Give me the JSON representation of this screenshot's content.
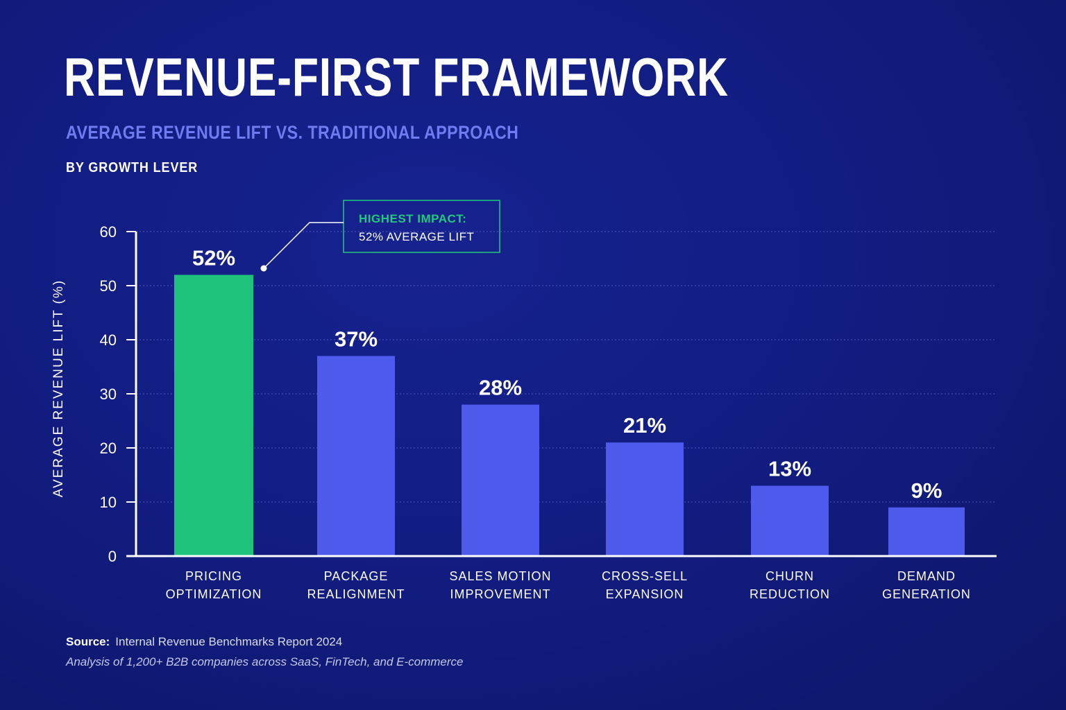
{
  "header": {
    "title": "REVENUE-FIRST FRAMEWORK",
    "subtitle": "AVERAGE REVENUE LIFT VS. TRADITIONAL APPROACH",
    "grouping": "BY GROWTH LEVER"
  },
  "chart_data": {
    "type": "bar",
    "ylabel": "AVERAGE REVENUE LIFT (%)",
    "xlabel": "",
    "ylim": [
      0,
      60
    ],
    "yticks": [
      0,
      10,
      20,
      30,
      40,
      50,
      60
    ],
    "grid": true,
    "categories": [
      [
        "PRICING",
        "OPTIMIZATION"
      ],
      [
        "PACKAGE",
        "REALIGNMENT"
      ],
      [
        "SALES MOTION",
        "IMPROVEMENT"
      ],
      [
        "CROSS-SELL",
        "EXPANSION"
      ],
      [
        "CHURN",
        "REDUCTION"
      ],
      [
        "DEMAND",
        "GENERATION"
      ]
    ],
    "values": [
      52,
      37,
      28,
      21,
      13,
      9
    ],
    "value_labels": [
      "52%",
      "37%",
      "28%",
      "21%",
      "13%",
      "9%"
    ],
    "highlight_index": 0,
    "colors": {
      "highlight": "#1fc27a",
      "default": "#4d5aeb",
      "grid": "#4a56b8",
      "axis": "#ffffff"
    },
    "annotation": {
      "heading": "HIGHEST IMPACT:",
      "text": "52% AVERAGE LIFT",
      "color": "#22c97d"
    }
  },
  "footer": {
    "source_label": "Source:",
    "source_text": "Internal Revenue Benchmarks Report 2024",
    "note": "Analysis of 1,200+ B2B companies across SaaS, FinTech, and E-commerce"
  }
}
